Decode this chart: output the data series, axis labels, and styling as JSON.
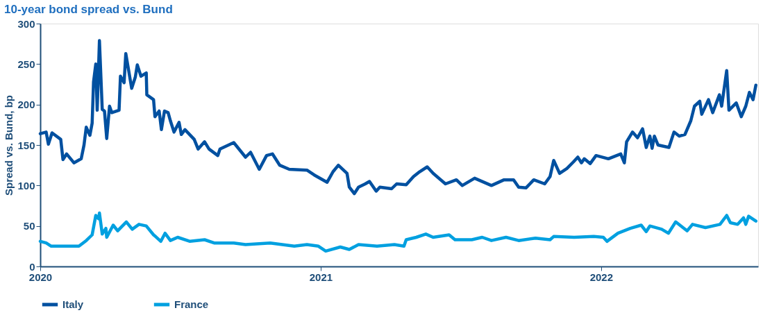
{
  "chart_data": {
    "type": "line",
    "title": "10-year bond spread vs. Bund",
    "ylabel": "Spread vs. Bund, bp",
    "xlim": [
      2020,
      2022.56
    ],
    "xticks": [
      2020,
      2021,
      2022
    ],
    "ylim": [
      0,
      300
    ],
    "yticks": [
      0,
      50,
      100,
      150,
      200,
      250,
      300
    ],
    "grid": false,
    "legend": "bottom",
    "marker": "none",
    "line_style": "solid",
    "series": [
      {
        "name": "Italy",
        "color": "#0050a0",
        "x": [
          2020.0,
          2020.021,
          2020.029,
          2020.042,
          2020.073,
          2020.081,
          2020.094,
          2020.12,
          2020.146,
          2020.156,
          2020.164,
          2020.177,
          2020.185,
          2020.19,
          2020.198,
          2020.203,
          2020.211,
          2020.221,
          2020.229,
          2020.237,
          2020.247,
          2020.255,
          2020.281,
          2020.286,
          2020.299,
          2020.305,
          2020.326,
          2020.339,
          2020.346,
          2020.359,
          2020.378,
          2020.38,
          2020.404,
          2020.409,
          2020.424,
          2020.432,
          2020.443,
          2020.456,
          2020.464,
          2020.477,
          2020.495,
          2020.503,
          2020.516,
          2020.549,
          2020.563,
          2020.586,
          2020.602,
          2020.633,
          2020.641,
          2020.69,
          2020.732,
          2020.75,
          2020.781,
          2020.807,
          2020.828,
          2020.854,
          2020.888,
          2020.951,
          2020.977,
          2021.023,
          2021.044,
          2021.063,
          2021.094,
          2021.102,
          2021.12,
          2021.135,
          2021.159,
          2021.174,
          2021.198,
          2021.211,
          2021.253,
          2021.271,
          2021.305,
          2021.331,
          2021.349,
          2021.38,
          2021.401,
          2021.445,
          2021.484,
          2021.505,
          2021.549,
          2021.609,
          2021.654,
          2021.688,
          2021.706,
          2021.732,
          2021.76,
          2021.799,
          2021.818,
          2021.831,
          2021.852,
          2021.878,
          2021.901,
          2021.917,
          2021.93,
          2021.94,
          2021.961,
          2021.982,
          2022.026,
          2022.07,
          2022.083,
          2022.091,
          2022.112,
          2022.13,
          2022.148,
          2022.161,
          2022.174,
          2022.182,
          2022.19,
          2022.203,
          2022.242,
          2022.26,
          2022.279,
          2022.299,
          2022.32,
          2022.333,
          2022.352,
          2022.359,
          2022.383,
          2022.398,
          2022.422,
          2022.43,
          2022.448,
          2022.456,
          2022.482,
          2022.5,
          2022.516,
          2022.529,
          2022.542,
          2022.552
        ],
        "values": [
          164,
          166,
          151,
          165,
          157,
          132,
          139,
          128,
          133,
          150,
          172,
          162,
          177,
          228,
          250,
          193,
          279,
          194,
          192,
          158,
          198,
          190,
          193,
          235,
          227,
          263,
          220,
          234,
          249,
          235,
          239,
          212,
          206,
          185,
          192,
          169,
          192,
          190,
          180,
          166,
          178,
          163,
          169,
          157,
          145,
          154,
          145,
          137,
          145,
          153,
          135,
          141,
          120,
          137,
          139,
          125,
          120,
          119,
          113,
          104,
          117,
          125,
          115,
          98,
          90,
          98,
          102,
          105,
          93,
          98,
          96,
          102,
          101,
          111,
          116,
          123,
          115,
          102,
          107,
          100,
          109,
          100,
          107,
          107,
          98,
          97,
          107,
          102,
          111,
          131,
          115,
          121,
          129,
          135,
          128,
          133,
          127,
          137,
          133,
          139,
          128,
          154,
          166,
          159,
          170,
          147,
          161,
          146,
          161,
          150,
          147,
          166,
          161,
          163,
          180,
          198,
          204,
          188,
          206,
          190,
          212,
          198,
          242,
          193,
          202,
          185,
          198,
          215,
          206,
          224
        ]
      },
      {
        "name": "France",
        "color": "#00a0e0",
        "x": [
          2020.0,
          2020.021,
          2020.039,
          2020.138,
          2020.164,
          2020.185,
          2020.198,
          2020.208,
          2020.211,
          2020.221,
          2020.234,
          2020.237,
          2020.26,
          2020.276,
          2020.307,
          2020.328,
          2020.352,
          2020.378,
          2020.404,
          2020.411,
          2020.43,
          2020.445,
          2020.464,
          2020.49,
          2020.534,
          2020.586,
          2020.62,
          2020.69,
          2020.732,
          2020.82,
          2020.906,
          2020.951,
          2020.992,
          2021.018,
          2021.07,
          2021.102,
          2021.135,
          2021.201,
          2021.263,
          2021.297,
          2021.305,
          2021.341,
          2021.375,
          2021.401,
          2021.458,
          2021.479,
          2021.539,
          2021.576,
          2021.609,
          2021.661,
          2021.706,
          2021.766,
          2021.818,
          2021.831,
          2021.904,
          2021.974,
          2022.008,
          2022.021,
          2022.06,
          2022.104,
          2022.143,
          2022.161,
          2022.174,
          2022.216,
          2022.24,
          2022.266,
          2022.307,
          2022.326,
          2022.372,
          2022.424,
          2022.448,
          2022.461,
          2022.487,
          2022.508,
          2022.516,
          2022.526,
          2022.552
        ],
        "values": [
          31,
          29,
          25,
          25,
          32,
          39,
          63,
          59,
          66,
          40,
          47,
          36,
          51,
          44,
          55,
          46,
          52,
          50,
          39,
          37,
          31,
          41,
          32,
          36,
          31,
          33,
          29,
          29,
          27,
          29,
          25,
          27,
          25,
          19,
          24,
          21,
          27,
          25,
          27,
          25,
          33,
          36,
          40,
          36,
          39,
          33,
          33,
          36,
          32,
          36,
          32,
          35,
          33,
          37,
          36,
          37,
          36,
          31,
          41,
          47,
          51,
          43,
          50,
          46,
          41,
          55,
          44,
          52,
          48,
          52,
          63,
          54,
          52,
          60,
          52,
          62,
          56
        ]
      }
    ]
  }
}
